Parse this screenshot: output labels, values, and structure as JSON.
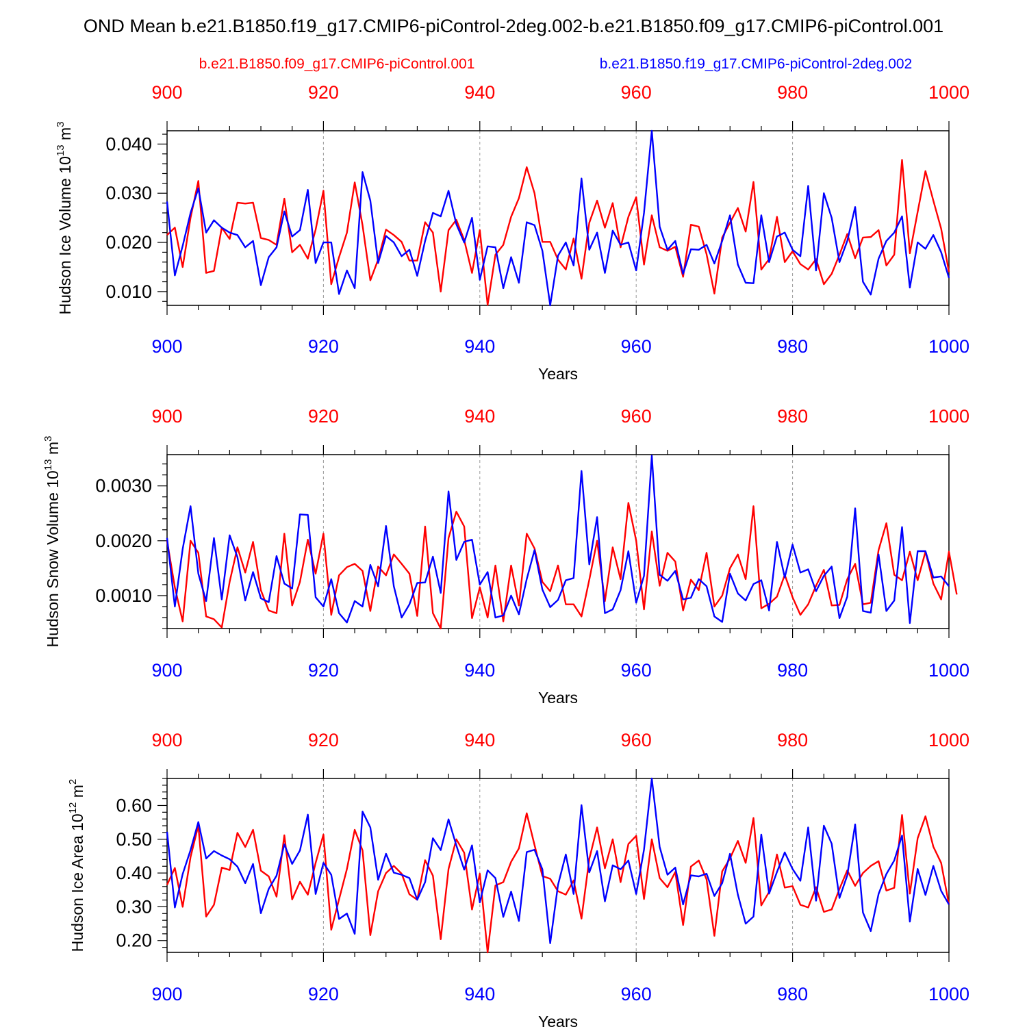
{
  "title": "OND Mean b.e21.B1850.f19_g17.CMIP6-piControl-2deg.002-b.e21.B1850.f09_g17.CMIP6-piControl.001",
  "legend": {
    "red_label": "b.e21.B1850.f09_g17.CMIP6-piControl.001",
    "blue_label": "b.e21.B1850.f19_g17.CMIP6-piControl-2deg.002"
  },
  "colors": {
    "red": "#ff0000",
    "blue": "#0000ff",
    "axis": "#000000",
    "grid": "#999999"
  },
  "chart_data": [
    {
      "type": "line",
      "title": "",
      "xlabel": "Years",
      "ylabel": {
        "base": "Hudson Ice Volume 10",
        "exp": "13",
        "unit": " m",
        "unit_exp": "3"
      },
      "xlim": [
        900,
        1000
      ],
      "ylim": [
        0.0072,
        0.0427
      ],
      "xticks": [
        "900",
        "920",
        "940",
        "960",
        "980",
        "1000"
      ],
      "top_xticks": [
        "900",
        "920",
        "940",
        "960",
        "980",
        "1000"
      ],
      "yticks": [
        {
          "value": 0.01,
          "label": "0.010"
        },
        {
          "value": 0.02,
          "label": "0.020"
        },
        {
          "value": 0.03,
          "label": "0.030"
        },
        {
          "value": 0.04,
          "label": "0.040"
        }
      ],
      "x_start": 900,
      "series": [
        {
          "name": "b.e21.B1850.f09_g17.CMIP6-piControl.001",
          "color": "#ff0000",
          "values": [
            0.0215,
            0.023,
            0.015,
            0.025,
            0.0325,
            0.0138,
            0.0142,
            0.023,
            0.0207,
            0.0281,
            0.0279,
            0.0281,
            0.0209,
            0.0205,
            0.0195,
            0.0289,
            0.018,
            0.0195,
            0.0167,
            0.0226,
            0.0305,
            0.0115,
            0.017,
            0.022,
            0.0322,
            0.0235,
            0.0123,
            0.0165,
            0.0226,
            0.0215,
            0.0201,
            0.0163,
            0.0163,
            0.0241,
            0.022,
            0.01,
            0.0225,
            0.0246,
            0.0205,
            0.0138,
            0.0225,
            0.0073,
            0.0175,
            0.0195,
            0.0252,
            0.029,
            0.0353,
            0.03,
            0.0201,
            0.0201,
            0.0165,
            0.0145,
            0.0208,
            0.0126,
            0.024,
            0.0285,
            0.023,
            0.028,
            0.019,
            0.0252,
            0.0292,
            0.0155,
            0.0255,
            0.019,
            0.0183,
            0.0191,
            0.013,
            0.0236,
            0.0232,
            0.0176,
            0.0096,
            0.021,
            0.024,
            0.027,
            0.0222,
            0.0323,
            0.0145,
            0.0166,
            0.0252,
            0.016,
            0.0182,
            0.0156,
            0.0145,
            0.0166,
            0.0115,
            0.0136,
            0.0175,
            0.0217,
            0.0168,
            0.021,
            0.0211,
            0.0225,
            0.0153,
            0.0175,
            0.0368,
            0.0178,
            0.0262,
            0.0345,
            0.0285,
            0.0228,
            0.014
          ]
        },
        {
          "name": "b.e21.B1850.f19_g17.CMIP6-piControl-2deg.002",
          "color": "#0000ff",
          "values": [
            0.0283,
            0.0133,
            0.0193,
            0.026,
            0.031,
            0.022,
            0.0245,
            0.023,
            0.022,
            0.0215,
            0.019,
            0.0203,
            0.0113,
            0.017,
            0.019,
            0.0263,
            0.0212,
            0.0225,
            0.0307,
            0.0158,
            0.02,
            0.02,
            0.0095,
            0.0143,
            0.0107,
            0.0343,
            0.0285,
            0.0158,
            0.0213,
            0.02,
            0.0172,
            0.0185,
            0.0132,
            0.0203,
            0.026,
            0.0253,
            0.0305,
            0.0237,
            0.02,
            0.025,
            0.0124,
            0.0192,
            0.019,
            0.0107,
            0.017,
            0.0118,
            0.0241,
            0.0235,
            0.0183,
            0.0072,
            0.0173,
            0.02,
            0.0153,
            0.033,
            0.0185,
            0.022,
            0.0138,
            0.0224,
            0.0195,
            0.02,
            0.0143,
            0.026,
            0.0427,
            0.0232,
            0.0185,
            0.0203,
            0.0136,
            0.0186,
            0.0185,
            0.0195,
            0.0157,
            0.0203,
            0.0255,
            0.0155,
            0.0118,
            0.0117,
            0.0255,
            0.016,
            0.0212,
            0.022,
            0.0185,
            0.0172,
            0.0315,
            0.0143,
            0.03,
            0.025,
            0.016,
            0.0203,
            0.0272,
            0.012,
            0.0094,
            0.0167,
            0.0203,
            0.022,
            0.0253,
            0.0108,
            0.02,
            0.0187,
            0.0215,
            0.018,
            0.0128
          ]
        }
      ]
    },
    {
      "type": "line",
      "title": "",
      "xlabel": "Years",
      "ylabel": {
        "base": "Hudson Snow Volume 10",
        "exp": "13",
        "unit": " m",
        "unit_exp": "3"
      },
      "xlim": [
        900,
        1000
      ],
      "ylim": [
        0.0004,
        0.00357
      ],
      "xticks": [
        "900",
        "920",
        "940",
        "960",
        "980",
        "1000"
      ],
      "top_xticks": [
        "900",
        "920",
        "940",
        "960",
        "980",
        "1000"
      ],
      "yticks": [
        {
          "value": 0.001,
          "label": "0.0010"
        },
        {
          "value": 0.002,
          "label": "0.0020"
        },
        {
          "value": 0.003,
          "label": "0.0030"
        }
      ],
      "x_start": 900,
      "series": [
        {
          "name": "b.e21.B1850.f09_g17.CMIP6-piControl.001",
          "color": "#ff0000",
          "values": [
            0.002,
            0.00115,
            0.00053,
            0.002,
            0.00178,
            0.00062,
            0.00057,
            0.00042,
            0.00125,
            0.00188,
            0.00142,
            0.00198,
            0.0011,
            0.00073,
            0.00068,
            0.00213,
            0.00082,
            0.00125,
            0.00202,
            0.0014,
            0.00213,
            0.00065,
            0.00137,
            0.00152,
            0.00158,
            0.00145,
            0.00072,
            0.00153,
            0.00137,
            0.00175,
            0.00158,
            0.0014,
            0.00063,
            0.00226,
            0.00068,
            0.0004,
            0.00205,
            0.00253,
            0.00226,
            0.00059,
            0.00115,
            0.0006,
            0.00155,
            0.00053,
            0.00155,
            0.00082,
            0.00213,
            0.00186,
            0.00125,
            0.00108,
            0.00155,
            0.00084,
            0.00084,
            0.00062,
            0.00129,
            0.002,
            0.0009,
            0.00188,
            0.0013,
            0.00269,
            0.002,
            0.00075,
            0.00217,
            0.00118,
            0.00178,
            0.00162,
            0.00073,
            0.00129,
            0.0011,
            0.00178,
            0.0008,
            0.001,
            0.0015,
            0.00175,
            0.0013,
            0.00263,
            0.00077,
            0.00085,
            0.00098,
            0.00138,
            0.00097,
            0.00065,
            0.00084,
            0.00118,
            0.00147,
            0.00082,
            0.00083,
            0.0013,
            0.00158,
            0.00084,
            0.00087,
            0.00183,
            0.00232,
            0.00138,
            0.00128,
            0.0018,
            0.00128,
            0.0018,
            0.00122,
            0.00093,
            0.0018,
            0.00102
          ]
        },
        {
          "name": "b.e21.B1850.f19_g17.CMIP6-piControl-2deg.002",
          "color": "#0000ff",
          "values": [
            0.00205,
            0.0008,
            0.00185,
            0.00263,
            0.0014,
            0.0009,
            0.00205,
            0.00093,
            0.0021,
            0.0017,
            0.00091,
            0.00143,
            0.00095,
            0.00088,
            0.00172,
            0.00122,
            0.00113,
            0.00248,
            0.00247,
            0.00097,
            0.0008,
            0.0013,
            0.00068,
            0.00051,
            0.0009,
            0.0008,
            0.00156,
            0.00117,
            0.00227,
            0.00117,
            0.0006,
            0.00084,
            0.00123,
            0.00124,
            0.00171,
            0.00105,
            0.0029,
            0.00165,
            0.00198,
            0.00202,
            0.0012,
            0.00143,
            0.0006,
            0.00064,
            0.001,
            0.00066,
            0.0013,
            0.00183,
            0.00111,
            0.00079,
            0.00092,
            0.00128,
            0.00132,
            0.00327,
            0.00157,
            0.00243,
            0.00068,
            0.00075,
            0.0011,
            0.00181,
            0.00087,
            0.00136,
            0.00355,
            0.00138,
            0.00127,
            0.00145,
            0.00093,
            0.00096,
            0.0013,
            0.00117,
            0.00062,
            0.00052,
            0.0014,
            0.00104,
            0.00091,
            0.00121,
            0.00128,
            0.00073,
            0.00198,
            0.00133,
            0.00193,
            0.00142,
            0.00148,
            0.00108,
            0.00136,
            0.00153,
            0.00059,
            0.00098,
            0.00259,
            0.00072,
            0.00069,
            0.00175,
            0.00072,
            0.00091,
            0.00225,
            0.0005,
            0.00181,
            0.00181,
            0.00133,
            0.00135,
            0.00117
          ]
        }
      ]
    },
    {
      "type": "line",
      "title": "",
      "xlabel": "Years",
      "ylabel": {
        "base": "Hudson Ice Area 10",
        "exp": "12",
        "unit": " m",
        "unit_exp": "2"
      },
      "xlim": [
        900,
        1000
      ],
      "ylim": [
        0.165,
        0.68
      ],
      "xticks": [
        "900",
        "920",
        "940",
        "960",
        "980",
        "1000"
      ],
      "top_xticks": [
        "900",
        "920",
        "940",
        "960",
        "980",
        "1000"
      ],
      "yticks": [
        {
          "value": 0.2,
          "label": "0.20"
        },
        {
          "value": 0.3,
          "label": "0.30"
        },
        {
          "value": 0.4,
          "label": "0.40"
        },
        {
          "value": 0.5,
          "label": "0.50"
        },
        {
          "value": 0.6,
          "label": "0.60"
        }
      ],
      "x_start": 900,
      "series": [
        {
          "name": "b.e21.B1850.f09_g17.CMIP6-piControl.001",
          "color": "#ff0000",
          "values": [
            0.365,
            0.415,
            0.3,
            0.447,
            0.541,
            0.271,
            0.306,
            0.416,
            0.409,
            0.519,
            0.477,
            0.528,
            0.407,
            0.39,
            0.33,
            0.512,
            0.322,
            0.374,
            0.336,
            0.43,
            0.514,
            0.232,
            0.322,
            0.412,
            0.528,
            0.467,
            0.216,
            0.346,
            0.4,
            0.421,
            0.398,
            0.337,
            0.321,
            0.438,
            0.392,
            0.204,
            0.412,
            0.5,
            0.46,
            0.292,
            0.398,
            0.165,
            0.363,
            0.373,
            0.433,
            0.473,
            0.577,
            0.483,
            0.391,
            0.383,
            0.346,
            0.336,
            0.378,
            0.265,
            0.442,
            0.535,
            0.414,
            0.5,
            0.373,
            0.486,
            0.51,
            0.323,
            0.5,
            0.385,
            0.358,
            0.403,
            0.246,
            0.419,
            0.437,
            0.381,
            0.214,
            0.405,
            0.443,
            0.495,
            0.43,
            0.563,
            0.304,
            0.344,
            0.455,
            0.357,
            0.361,
            0.306,
            0.298,
            0.358,
            0.285,
            0.292,
            0.353,
            0.408,
            0.362,
            0.4,
            0.421,
            0.435,
            0.348,
            0.356,
            0.572,
            0.339,
            0.503,
            0.568,
            0.478,
            0.43,
            0.307
          ]
        },
        {
          "name": "b.e21.B1850.f19_g17.CMIP6-piControl-2deg.002",
          "color": "#0000ff",
          "values": [
            0.522,
            0.298,
            0.397,
            0.468,
            0.551,
            0.443,
            0.465,
            0.452,
            0.441,
            0.419,
            0.37,
            0.427,
            0.281,
            0.353,
            0.392,
            0.485,
            0.427,
            0.467,
            0.573,
            0.338,
            0.43,
            0.395,
            0.264,
            0.28,
            0.22,
            0.582,
            0.535,
            0.38,
            0.457,
            0.401,
            0.395,
            0.385,
            0.321,
            0.373,
            0.503,
            0.468,
            0.559,
            0.482,
            0.41,
            0.482,
            0.313,
            0.408,
            0.385,
            0.27,
            0.345,
            0.258,
            0.462,
            0.469,
            0.411,
            0.192,
            0.365,
            0.455,
            0.338,
            0.601,
            0.402,
            0.465,
            0.316,
            0.423,
            0.411,
            0.437,
            0.338,
            0.469,
            0.68,
            0.477,
            0.395,
            0.416,
            0.307,
            0.393,
            0.39,
            0.398,
            0.332,
            0.37,
            0.457,
            0.336,
            0.25,
            0.271,
            0.514,
            0.339,
            0.403,
            0.461,
            0.412,
            0.377,
            0.535,
            0.318,
            0.54,
            0.487,
            0.326,
            0.393,
            0.544,
            0.283,
            0.228,
            0.338,
            0.397,
            0.437,
            0.511,
            0.256,
            0.412,
            0.335,
            0.421,
            0.347,
            0.307
          ]
        }
      ]
    }
  ]
}
